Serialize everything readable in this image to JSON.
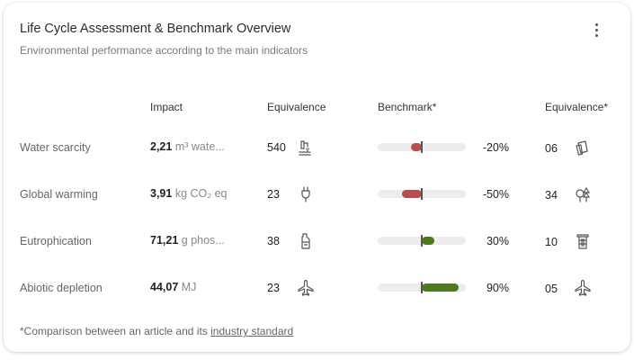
{
  "card": {
    "title": "Life Cycle Assessment & Benchmark Overview",
    "subtitle": "Environmental performance according to the main indicators"
  },
  "headers": {
    "impact": "Impact",
    "equivalence": "Equivalence",
    "benchmark": "Benchmark*",
    "equivalence2": "Equivalence*"
  },
  "rows": [
    {
      "label": "Water scarcity",
      "impact_value": "2,21",
      "impact_unit": "m³ wate...",
      "equiv": "540",
      "equiv_icon": "shower-icon",
      "benchmark": -20,
      "benchmark_text": "-20%",
      "benchmark_color": "#b84d4d",
      "equiv2": "06",
      "equiv2_icon": "cups-icon"
    },
    {
      "label": "Global warming",
      "impact_value": "3,91",
      "impact_unit": "kg CO₂ eq",
      "equiv": "23",
      "equiv_icon": "plug-icon",
      "benchmark": -50,
      "benchmark_text": "-50%",
      "benchmark_color": "#b84d4d",
      "equiv2": "34",
      "equiv2_icon": "trees-icon"
    },
    {
      "label": "Eutrophication",
      "impact_value": "71,21",
      "impact_unit": "g phos...",
      "equiv": "38",
      "equiv_icon": "detergent-icon",
      "benchmark": 30,
      "benchmark_text": "30%",
      "benchmark_color": "#4d7a1e",
      "equiv2": "10",
      "equiv2_icon": "filter-icon"
    },
    {
      "label": "Abiotic depletion",
      "impact_value": "44,07",
      "impact_unit": "MJ",
      "equiv": "23",
      "equiv_icon": "airplane-icon",
      "benchmark": 90,
      "benchmark_text": "90%",
      "benchmark_color": "#4d7a1e",
      "equiv2": "05",
      "equiv2_icon": "airplane-icon"
    }
  ],
  "footer": {
    "text": "*Comparison between an article and its",
    "link": "industry standard"
  }
}
